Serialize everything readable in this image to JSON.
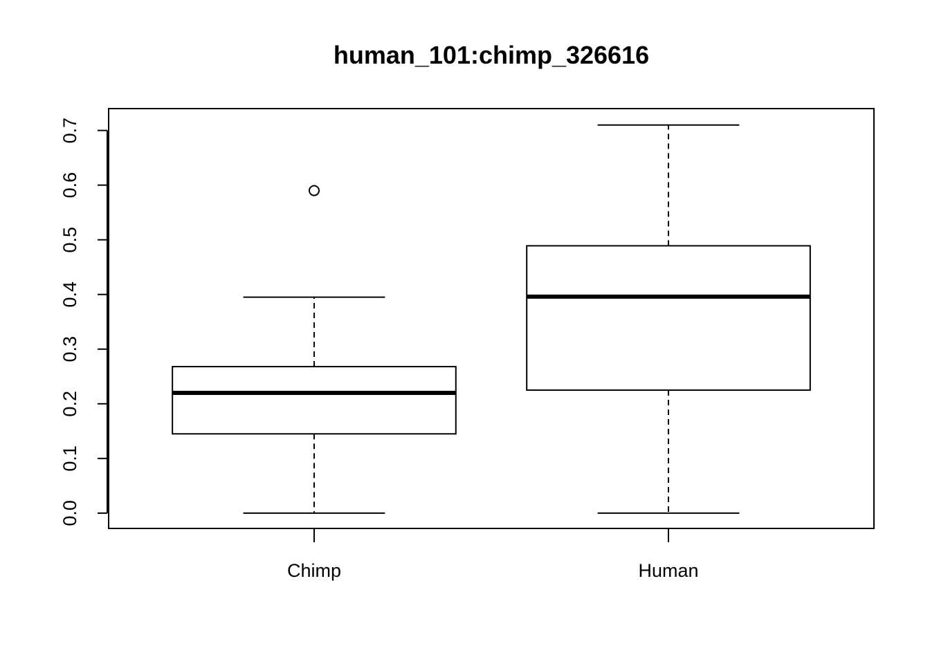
{
  "chart_data": {
    "type": "boxplot",
    "title": "human_101:chimp_326616",
    "xlabel": "",
    "ylabel": "",
    "categories": [
      "Chimp",
      "Human"
    ],
    "boxes": [
      {
        "category": "Chimp",
        "min": 0.0,
        "q1": 0.145,
        "median": 0.22,
        "q3": 0.268,
        "max": 0.395,
        "outliers": [
          0.59
        ]
      },
      {
        "category": "Human",
        "min": 0.0,
        "q1": 0.225,
        "median": 0.396,
        "q3": 0.489,
        "max": 0.71,
        "outliers": []
      }
    ],
    "yticks": [
      "0.0",
      "0.1",
      "0.2",
      "0.3",
      "0.4",
      "0.5",
      "0.6",
      "0.7"
    ],
    "ylim": [
      -0.028,
      0.74
    ],
    "grid": false,
    "legend": "none",
    "colors": {
      "ink": "#000000",
      "background": "#ffffff"
    }
  }
}
